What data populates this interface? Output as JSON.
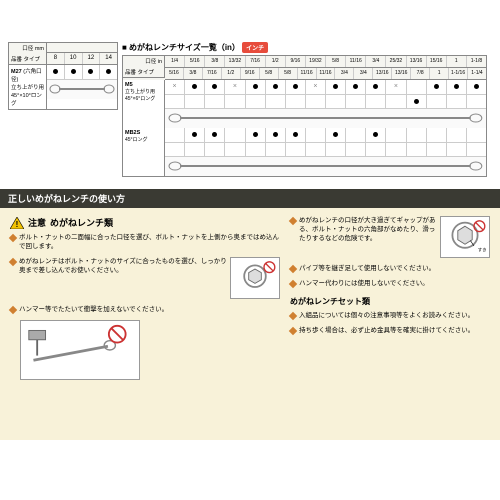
{
  "table1": {
    "corner_top": "口径\nmm",
    "corner_bottom": "品番\nタイプ",
    "cols": [
      "8",
      "10",
      "12",
      "14"
    ],
    "row": {
      "code": "M27",
      "note": "(六角口径)",
      "sub": "立ち上がり用\n45°×10°ロング",
      "dots": [
        true,
        true,
        true,
        true
      ]
    }
  },
  "table2": {
    "title": "■ めがねレンチサイズ一覧（in）",
    "badge": "インチ",
    "corner_top": "口径\nin",
    "corner_bottom": "品番\nタイプ",
    "cols_top": [
      "1/4",
      "5/16",
      "3/8",
      "13/32",
      "7/16",
      "1/2",
      "9/16",
      "19/32",
      "5/8",
      "11/16",
      "3/4",
      "25/32",
      "13/16",
      "15/16",
      "1",
      "1-1/8"
    ],
    "cols_bot": [
      "5/16",
      "3/8",
      "7/16",
      "1/2",
      "9/16",
      "5/8",
      "5/8",
      "11/16",
      "11/16",
      "3/4",
      "3/4",
      "13/16",
      "13/16",
      "7/8",
      "1",
      "1-1/16",
      "1-1/4"
    ],
    "rows": [
      {
        "code": "M5",
        "sub": "立ち上がり用\n45°×6°ロング",
        "dots1": [
          "×",
          "●",
          "●",
          "×",
          "●",
          "●",
          "●",
          "×",
          "●",
          "●",
          "●",
          "×",
          "",
          "●",
          "●",
          "●"
        ],
        "dots2": [
          "",
          "",
          "",
          "",
          "",
          "",
          "",
          "",
          "",
          "",
          "",
          "",
          "●",
          "",
          "",
          "",
          ""
        ]
      },
      {
        "code": "MB2S",
        "sub": "45°ロング",
        "dots1": [
          "",
          "●",
          "●",
          "",
          "●",
          "●",
          "●",
          "",
          "●",
          "",
          "●",
          "",
          "",
          "",
          "",
          ""
        ],
        "dots2": [
          "",
          "",
          "",
          "",
          "",
          "",
          "",
          "",
          "",
          "",
          "",
          "",
          "",
          "",
          "",
          "",
          ""
        ]
      }
    ]
  },
  "section_title": "正しいめがねレンチの使い方",
  "caution_label": "注意",
  "caution_title": "めがねレンチ類",
  "left_bullets": [
    "ボルト・ナットの二面幅に合った口径を選び、ボルト・ナットを上側から奥まではめ込んで回します。",
    "めがねレンチはボルト・ナットのサイズに合ったものを選び、しっかり奥まで差し込んでお使いください。",
    "ハンマー等でたたいて衝撃を加えないでください。"
  ],
  "right_bullets": [
    "めがねレンチの口径が大き過ぎてギャップがある、ボルト・ナットの六角部がなめたり、滑ったりするなどの危険です。",
    "パイプ等を継ぎ足して使用しないでください。",
    "ハンマー代わりには使用しないでください。"
  ],
  "set_title": "めがねレンチセット類",
  "set_bullets": [
    "入組品については個々の注意事項等をよくお読みください。",
    "持ち歩く場合は、必ず止め金具等を確実に掛けてください。"
  ],
  "diagram_labels": {
    "gap": "すき間"
  },
  "colors": {
    "beige": "#f8f2d9",
    "bar": "#3a3a33",
    "diamond": "#d08030",
    "badge": "#e74c3c",
    "x_red": "#cc3333"
  }
}
